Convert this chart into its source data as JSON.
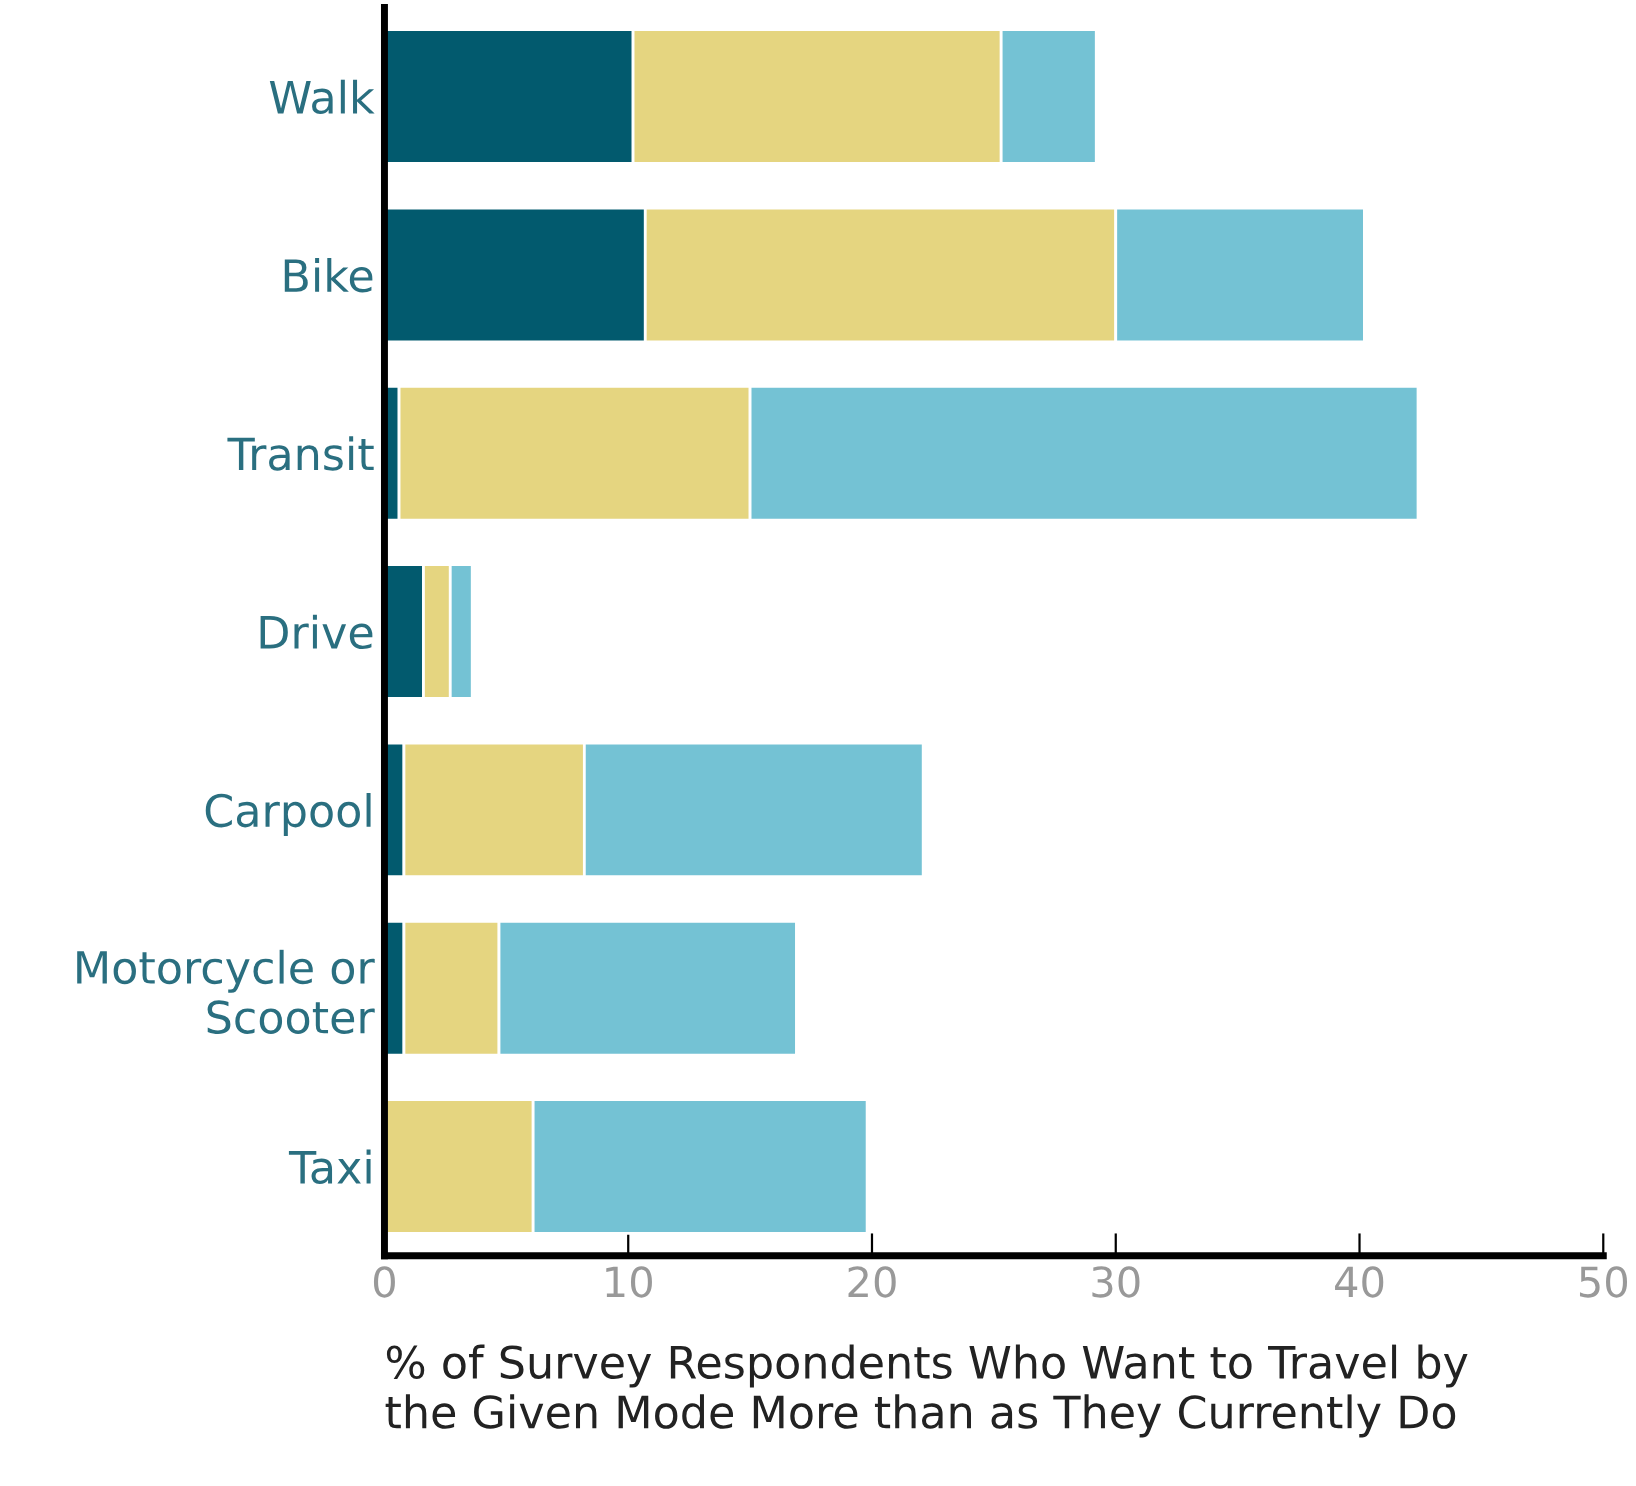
{
  "chart_data": {
    "type": "bar",
    "orientation": "horizontal",
    "stacked": true,
    "categories": [
      "Walk",
      "Bike",
      "Transit",
      "Drive",
      "Carpool",
      "Motorcycle or\nScooter",
      "Taxi"
    ],
    "series": [
      {
        "color": "#025a6e",
        "values": [
          10.2,
          10.7,
          0.6,
          1.6,
          0.8,
          0.8,
          0
        ]
      },
      {
        "color": "#e5d580",
        "values": [
          15.1,
          19.3,
          14.4,
          1.1,
          7.4,
          3.9,
          6.1
        ]
      },
      {
        "color": "#74c2d4",
        "values": [
          3.9,
          10.2,
          27.4,
          0.9,
          13.9,
          12.2,
          13.7
        ]
      }
    ],
    "xlim": [
      0,
      50
    ],
    "xticks": [
      0,
      10,
      20,
      30,
      40,
      50
    ],
    "xlabel": "% of Survey Respondents Who Want to Travel by\nthe Given Mode More than as They Currently Do",
    "grid": false,
    "legend": false
  }
}
